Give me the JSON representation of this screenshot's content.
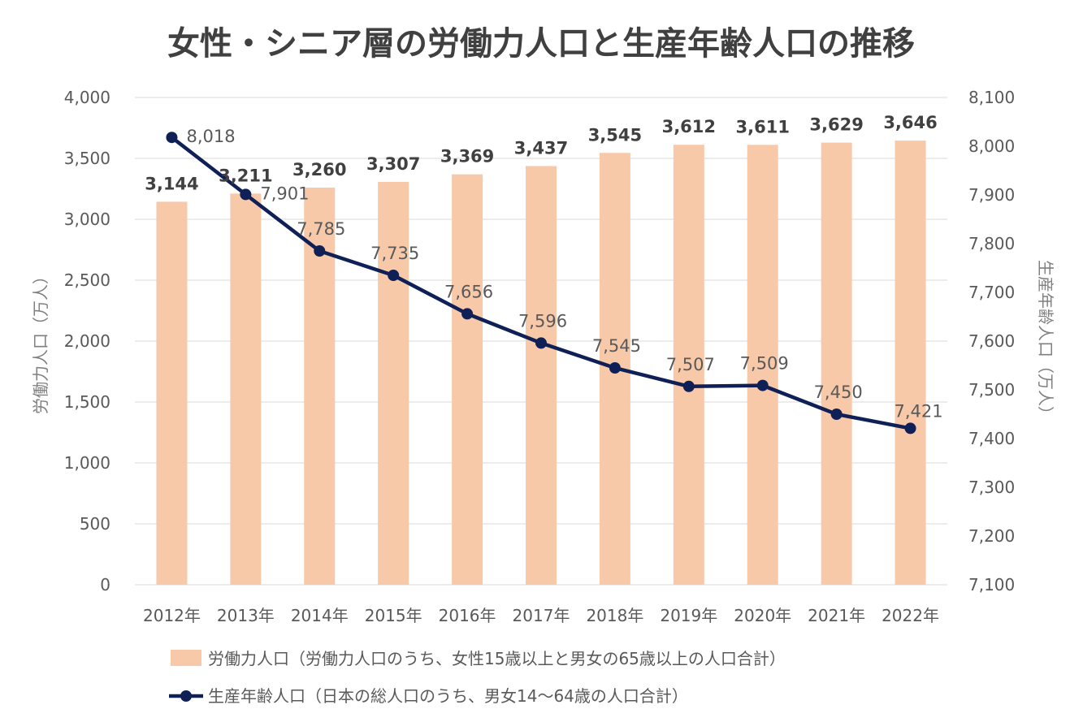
{
  "chart_data": {
    "type": "bar",
    "title": "女性・シニア層の労働力人口と生産年齢人口の推移",
    "categories": [
      "2012年",
      "2013年",
      "2014年",
      "2015年",
      "2016年",
      "2017年",
      "2018年",
      "2019年",
      "2020年",
      "2021年",
      "2022年"
    ],
    "ylabel": "労働力人口（万人）",
    "y2label": "生産年齢人口（万人）",
    "ylim": [
      0,
      4000
    ],
    "y2lim": [
      7100,
      8100
    ],
    "yticks": [
      "0",
      "500",
      "1,000",
      "1,500",
      "2,000",
      "2,500",
      "3,000",
      "3,500",
      "4,000"
    ],
    "y2ticks": [
      "7,100",
      "7,200",
      "7,300",
      "7,400",
      "7,500",
      "7,600",
      "7,700",
      "7,800",
      "7,900",
      "8,000",
      "8,100"
    ],
    "grid": true,
    "legend_position": "bottom",
    "series": [
      {
        "name": "労働力人口（労働力人口のうち、女性15歳以上と男女の65歳以上の人口合計）",
        "type": "bar",
        "axis": "left",
        "color": "#f7c9a9",
        "values": [
          3144,
          3211,
          3260,
          3307,
          3369,
          3437,
          3545,
          3612,
          3611,
          3629,
          3646
        ],
        "labels": [
          "3,144",
          "3,211",
          "3,260",
          "3,307",
          "3,369",
          "3,437",
          "3,545",
          "3,612",
          "3,611",
          "3,629",
          "3,646"
        ]
      },
      {
        "name": "生産年齢人口（日本の総人口のうち、男女14〜64歳の人口合計）",
        "type": "line",
        "axis": "right",
        "color": "#0f2057",
        "values": [
          8018,
          7901,
          7785,
          7735,
          7656,
          7596,
          7545,
          7507,
          7509,
          7450,
          7421
        ],
        "labels": [
          "8,018",
          "7,901",
          "7,785",
          "7,735",
          "7,656",
          "7,596",
          "7,545",
          "7,507",
          "7,509",
          "7,450",
          "7,421"
        ]
      }
    ]
  }
}
